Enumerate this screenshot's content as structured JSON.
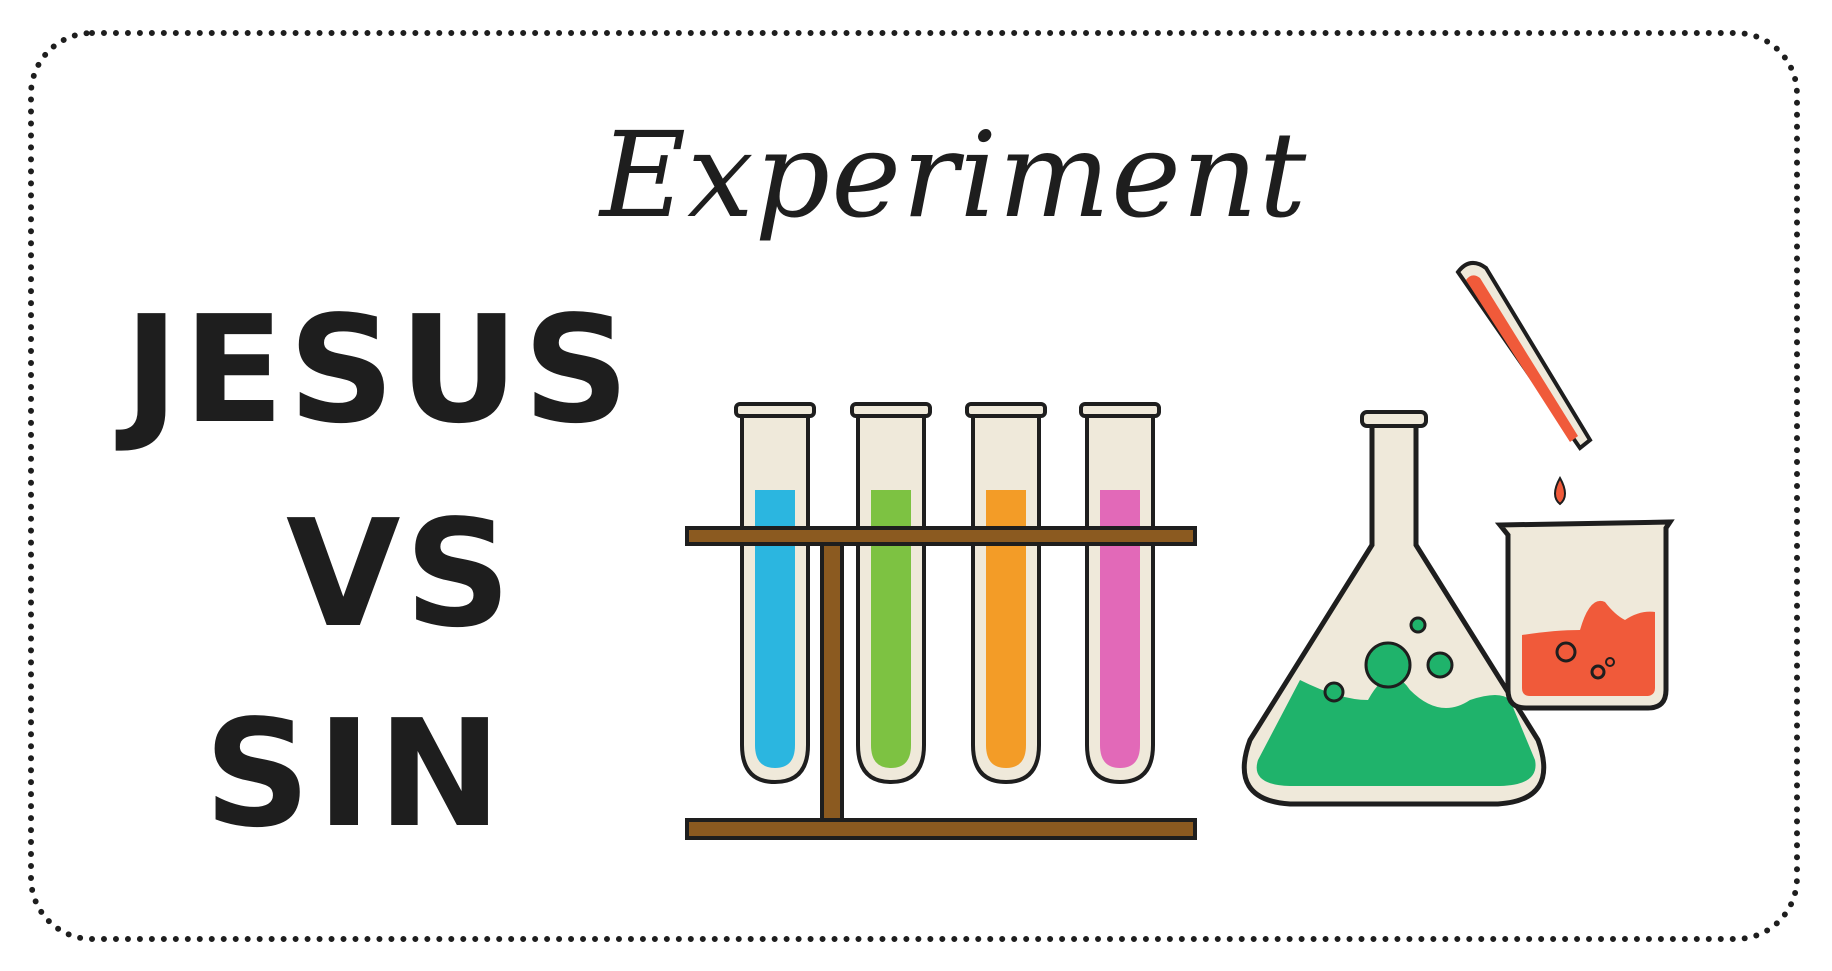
{
  "card": {
    "title": "Experiment",
    "line1": "JESUS",
    "line2": "VS",
    "line3": "SIN"
  },
  "illustration": {
    "tube_colors": [
      "#2bb6e0",
      "#7dc242",
      "#f39c27",
      "#e269b8"
    ],
    "flask_liquid_color": "#1fb36b",
    "beaker_liquid_color": "#f05a3a",
    "pipette_liquid_color": "#f05a3a",
    "rack_color": "#8b5a20"
  }
}
